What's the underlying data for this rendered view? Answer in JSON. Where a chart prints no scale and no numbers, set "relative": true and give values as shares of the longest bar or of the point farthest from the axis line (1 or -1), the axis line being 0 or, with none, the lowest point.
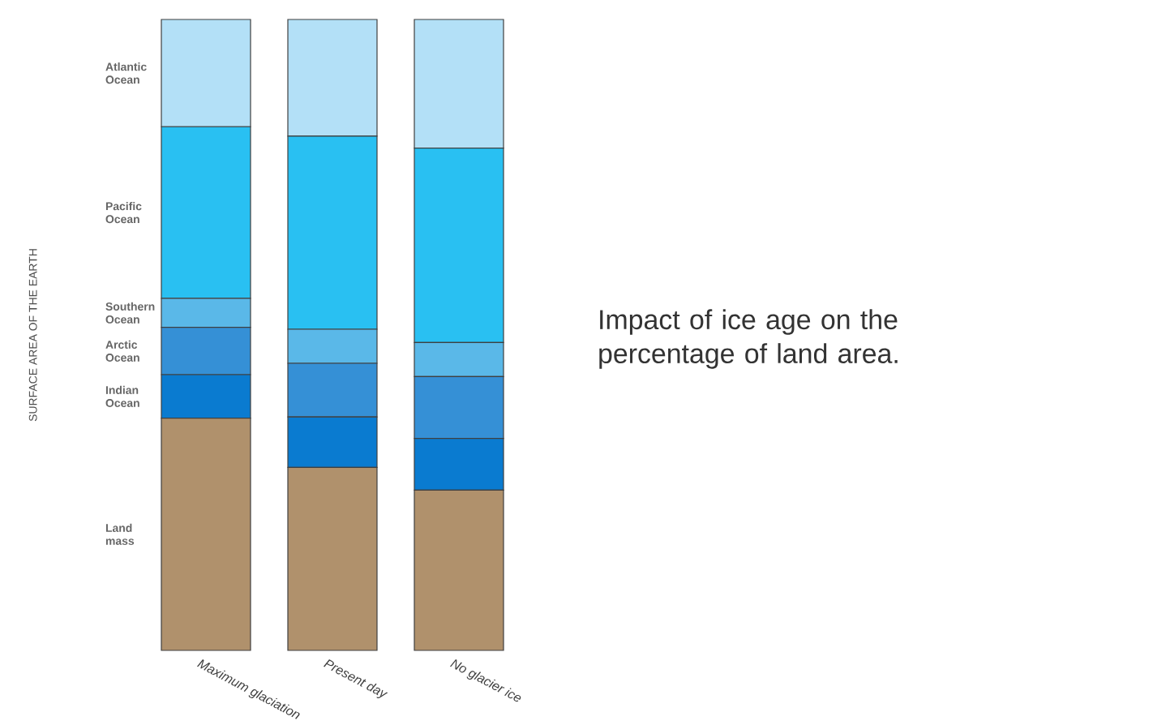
{
  "chart_data": {
    "type": "bar",
    "stacked": true,
    "relative": true,
    "title": "Impact of ice age on the percentage of land area.",
    "annotations": [
      "SURFACE AREA OF THE EARTH"
    ],
    "categories": [
      "Maximum glaciation",
      "Present day",
      "No glacier ice"
    ],
    "series": [
      {
        "name": "Land mass",
        "color": "#b0916c",
        "values": [
          0.368,
          0.29,
          0.254
        ]
      },
      {
        "name": "Indian Ocean",
        "color": "#0a7bd0",
        "values": [
          0.069,
          0.08,
          0.082
        ]
      },
      {
        "name": "Arctic Ocean",
        "color": "#3590d6",
        "values": [
          0.075,
          0.085,
          0.098
        ]
      },
      {
        "name": "Southern Ocean",
        "color": "#5ab8e8",
        "values": [
          0.046,
          0.054,
          0.054
        ]
      },
      {
        "name": "Pacific Ocean",
        "color": "#29c0f2",
        "values": [
          0.272,
          0.306,
          0.308
        ]
      },
      {
        "name": "Atlantic Ocean",
        "color": "#b3e0f7",
        "values": [
          0.17,
          0.185,
          0.204
        ]
      }
    ]
  }
}
